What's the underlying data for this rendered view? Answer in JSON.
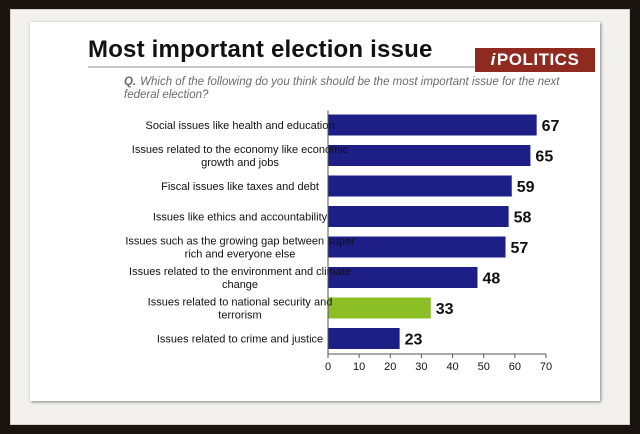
{
  "colors": {
    "primary_bar": "#1e1e87",
    "highlight_bar": "#8cbf26",
    "logo_bg": "#8f2a20"
  },
  "logo": {
    "mark": "i",
    "text": "POLITICS"
  },
  "question": {
    "prefix": "Q.",
    "text": "Which of the following do you think should be the most important issue for the next federal election?"
  },
  "chart_data": {
    "type": "bar",
    "orientation": "horizontal",
    "title": "Most important election issue",
    "categories": [
      [
        "Social issues like health and education"
      ],
      [
        "Issues related to the economy like economic",
        "growth and jobs"
      ],
      [
        "Fiscal issues like taxes and debt"
      ],
      [
        "Issues like ethics and accountability"
      ],
      [
        "Issues such as the growing gap between super",
        "rich and everyone else"
      ],
      [
        "Issues related to the environment and climate",
        "change"
      ],
      [
        "Issues related to national security and",
        "terrorism"
      ],
      [
        "Issues related to crime and justice"
      ]
    ],
    "values": [
      67,
      65,
      59,
      58,
      57,
      48,
      33,
      23
    ],
    "highlight_index": 6,
    "xlim": [
      0,
      70
    ],
    "xticks": [
      0,
      10,
      20,
      30,
      40,
      50,
      60,
      70
    ],
    "grid": false,
    "legend": "none"
  }
}
